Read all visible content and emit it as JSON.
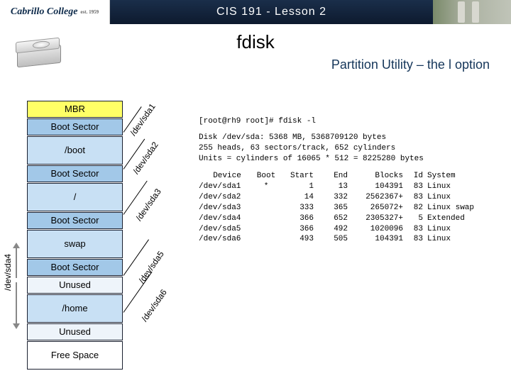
{
  "header": {
    "logo_text": "Cabrillo College",
    "logo_est": "est. 1959",
    "course": "CIS 191 - Lesson 2"
  },
  "title": "fdisk",
  "subtitle": "Partition Utility – the l option",
  "partitions": {
    "mbr": "MBR",
    "bs": "Boot Sector",
    "boot": "/boot",
    "root": "/",
    "swap": "swap",
    "unused": "Unused",
    "home": "/home",
    "free": "Free Space"
  },
  "sda4_label": "/dev/sda4",
  "diag_labels": {
    "sda1": "/dev/sda1",
    "sda2": "/dev/sda2",
    "sda3": "/dev/sda3",
    "sda5": "/dev/sda5",
    "sda6": "/dev/sda6"
  },
  "terminal": {
    "prompt": "[root@rh9 root]# fdisk -l",
    "disk1": "Disk /dev/sda: 5368 MB, 5368709120 bytes",
    "disk2": "255 heads, 63 sectors/track, 652 cylinders",
    "disk3": "Units = cylinders of 16065 * 512 = 8225280 bytes",
    "headers": {
      "device": "Device",
      "boot": "Boot",
      "start": "Start",
      "end": "End",
      "blocks": "Blocks",
      "id": "Id",
      "system": "System"
    },
    "rows": [
      {
        "dev": "/dev/sda1",
        "boot": "*",
        "start": "1",
        "end": "13",
        "blocks": "104391",
        "id": "83",
        "sys": "Linux"
      },
      {
        "dev": "/dev/sda2",
        "boot": "",
        "start": "14",
        "end": "332",
        "blocks": "2562367+",
        "id": "83",
        "sys": "Linux"
      },
      {
        "dev": "/dev/sda3",
        "boot": "",
        "start": "333",
        "end": "365",
        "blocks": "265072+",
        "id": "82",
        "sys": "Linux swap"
      },
      {
        "dev": "/dev/sda4",
        "boot": "",
        "start": "366",
        "end": "652",
        "blocks": "2305327+",
        "id": "5",
        "sys": "Extended"
      },
      {
        "dev": "/dev/sda5",
        "boot": "",
        "start": "366",
        "end": "492",
        "blocks": "1020096",
        "id": "83",
        "sys": "Linux"
      },
      {
        "dev": "/dev/sda6",
        "boot": "",
        "start": "493",
        "end": "505",
        "blocks": "104391",
        "id": "83",
        "sys": "Linux"
      }
    ]
  },
  "colors": {
    "header_bg": "#14365a",
    "mbr": "#ffff66",
    "bs": "#a2c8e8",
    "part": "#c8e0f4"
  }
}
